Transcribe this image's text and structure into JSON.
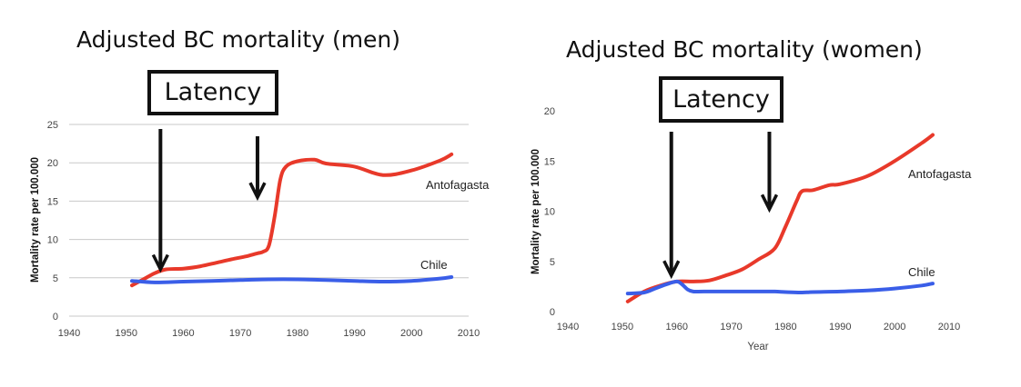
{
  "chart_data": [
    {
      "type": "line",
      "title": "Adjusted BC mortality (men)",
      "ylabel": "Mortality rate per 100.000",
      "xlabel": "",
      "xlim": [
        1940,
        2010
      ],
      "ylim": [
        0,
        25
      ],
      "x_ticks": [
        "1940",
        "1950",
        "1960",
        "1970",
        "1980",
        "1990",
        "2000",
        "2010"
      ],
      "y_ticks": [
        "0",
        "5",
        "10",
        "15",
        "20",
        "25"
      ],
      "grid": "horizontal",
      "series": [
        {
          "name": "Antofagasta",
          "color": "#e8392a",
          "x": [
            1951,
            1953,
            1955,
            1957,
            1960,
            1963,
            1966,
            1969,
            1971,
            1973,
            1974,
            1975,
            1976,
            1977,
            1978,
            1980,
            1983,
            1985,
            1990,
            1995,
            2000,
            2005,
            2007
          ],
          "y": [
            4.0,
            4.8,
            5.6,
            6.1,
            6.2,
            6.5,
            7.0,
            7.5,
            7.8,
            8.2,
            8.4,
            9.2,
            13.0,
            17.8,
            19.5,
            20.2,
            20.4,
            19.9,
            19.5,
            18.4,
            19.0,
            20.3,
            21.1
          ]
        },
        {
          "name": "Chile",
          "color": "#3a5ee8",
          "x": [
            1951,
            1955,
            1960,
            1965,
            1970,
            1975,
            1980,
            1985,
            1990,
            1995,
            2000,
            2005,
            2007
          ],
          "y": [
            4.6,
            4.4,
            4.5,
            4.6,
            4.7,
            4.8,
            4.8,
            4.7,
            4.6,
            4.5,
            4.6,
            4.9,
            5.1
          ]
        }
      ],
      "annotations": [
        {
          "text": "Latency"
        },
        {
          "type": "arrow",
          "x": 1956,
          "y": 6.1
        },
        {
          "type": "arrow",
          "x": 1973,
          "y": 15.5
        }
      ]
    },
    {
      "type": "line",
      "title": "Adjusted BC mortality (women)",
      "ylabel": "Mortality rate per 100.000",
      "xlabel": "Year",
      "xlim": [
        1940,
        2010
      ],
      "ylim": [
        0,
        20
      ],
      "x_ticks": [
        "1940",
        "1950",
        "1960",
        "1970",
        "1980",
        "1990",
        "2000",
        "2010"
      ],
      "y_ticks": [
        "0",
        "5",
        "10",
        "15",
        "20"
      ],
      "grid": "none",
      "series": [
        {
          "name": "Antofagasta",
          "color": "#e8392a",
          "x": [
            1951,
            1954,
            1957,
            1960,
            1963,
            1966,
            1969,
            1972,
            1975,
            1978,
            1980,
            1982,
            1983,
            1985,
            1988,
            1990,
            1995,
            2000,
            2005,
            2007
          ],
          "y": [
            1.0,
            2.0,
            2.6,
            3.0,
            3.0,
            3.1,
            3.6,
            4.2,
            5.2,
            6.3,
            8.5,
            11.0,
            12.0,
            12.1,
            12.6,
            12.7,
            13.5,
            15.0,
            16.8,
            17.6
          ]
        },
        {
          "name": "Chile",
          "color": "#3a5ee8",
          "x": [
            1951,
            1954,
            1956,
            1958,
            1960,
            1961,
            1962,
            1963,
            1965,
            1970,
            1975,
            1978,
            1980,
            1983,
            1985,
            1990,
            1995,
            2000,
            2005,
            2007
          ],
          "y": [
            1.8,
            1.9,
            2.3,
            2.7,
            3.0,
            2.7,
            2.2,
            2.0,
            2.0,
            2.0,
            2.0,
            2.0,
            1.95,
            1.9,
            1.95,
            2.0,
            2.1,
            2.3,
            2.6,
            2.8
          ]
        }
      ],
      "annotations": [
        {
          "text": "Latency"
        },
        {
          "type": "arrow",
          "x": 1959,
          "y": 3.6
        },
        {
          "type": "arrow",
          "x": 1977,
          "y": 10.2
        }
      ]
    }
  ]
}
